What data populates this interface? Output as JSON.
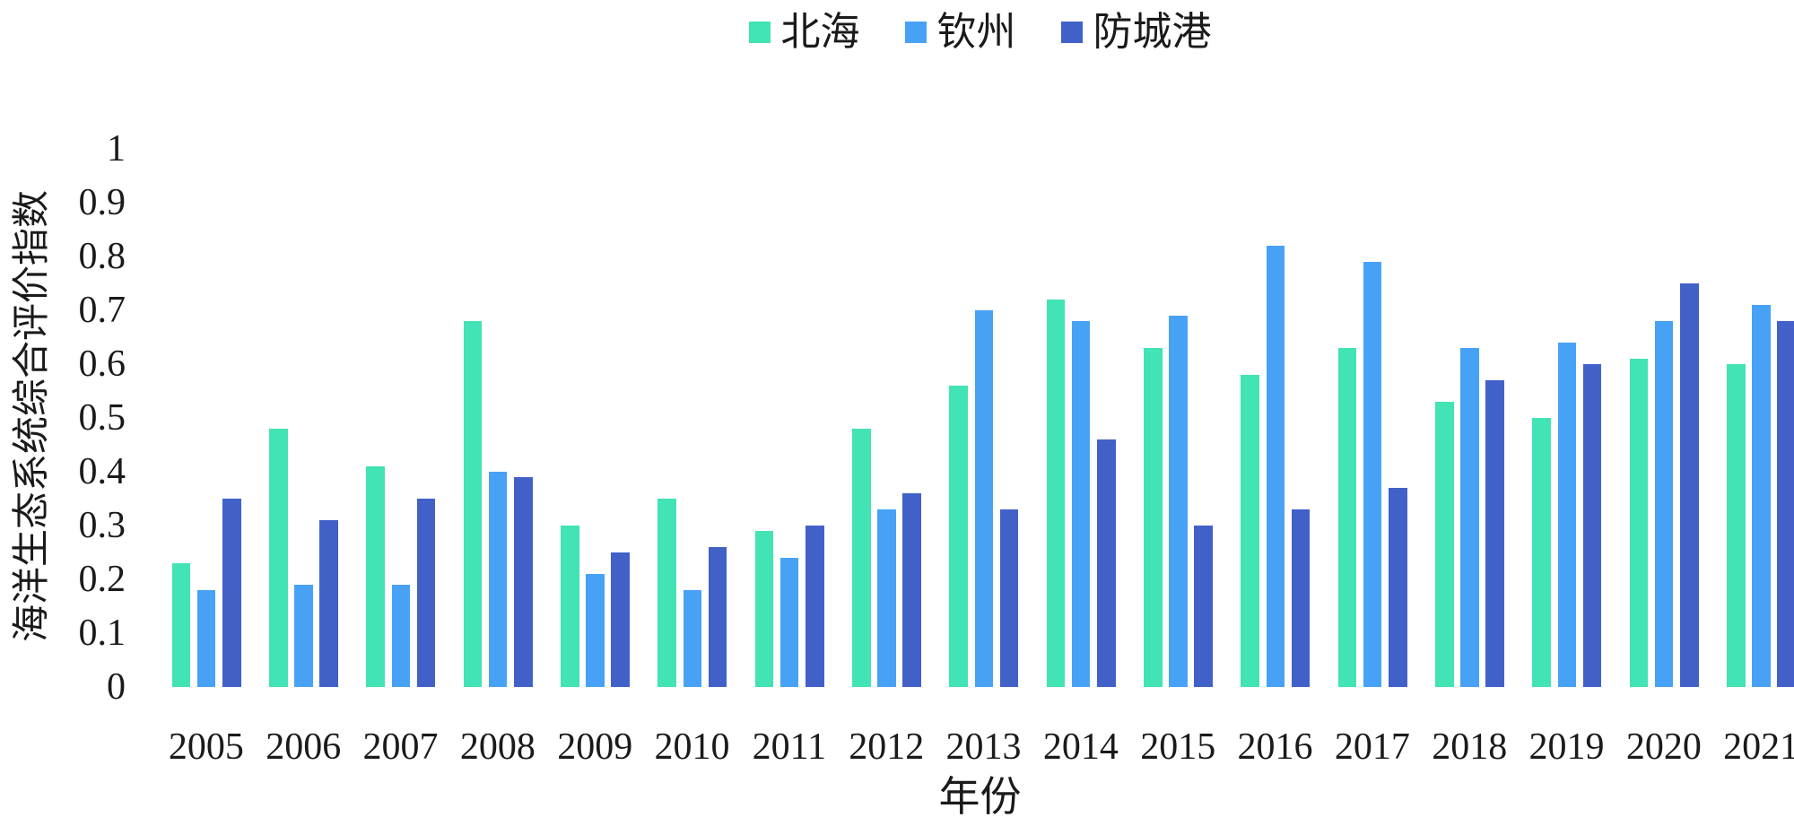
{
  "chart_data": {
    "type": "bar",
    "title": "",
    "categories": [
      "2005",
      "2006",
      "2007",
      "2008",
      "2009",
      "2010",
      "2011",
      "2012",
      "2013",
      "2014",
      "2015",
      "2016",
      "2017",
      "2018",
      "2019",
      "2020",
      "2021"
    ],
    "series": [
      {
        "name": "北海",
        "color": "#42E3B4",
        "values": [
          0.23,
          0.48,
          0.41,
          0.68,
          0.3,
          0.35,
          0.29,
          0.48,
          0.56,
          0.72,
          0.63,
          0.58,
          0.63,
          0.53,
          0.5,
          0.61,
          0.6
        ]
      },
      {
        "name": "钦州",
        "color": "#47A2F6",
        "values": [
          0.18,
          0.19,
          0.19,
          0.4,
          0.21,
          0.18,
          0.24,
          0.33,
          0.7,
          0.68,
          0.69,
          0.82,
          0.79,
          0.63,
          0.64,
          0.68,
          0.71
        ]
      },
      {
        "name": "防城港",
        "color": "#4161C9",
        "values": [
          0.35,
          0.31,
          0.35,
          0.39,
          0.25,
          0.26,
          0.3,
          0.36,
          0.33,
          0.46,
          0.3,
          0.33,
          0.37,
          0.57,
          0.6,
          0.75,
          0.68
        ]
      }
    ],
    "xlabel": "年份",
    "ylabel": "海洋生态系统综合评价指数",
    "ylim": [
      0,
      1
    ],
    "ytick_labels": [
      "0",
      "0.1",
      "0.2",
      "0.3",
      "0.4",
      "0.5",
      "0.6",
      "0.7",
      "0.8",
      "0.9",
      "1"
    ],
    "grid": false,
    "axis_lines": false,
    "legend_position": "top-center",
    "series_ids": [
      "beihai",
      "qinzhou",
      "fangchenggang"
    ]
  }
}
